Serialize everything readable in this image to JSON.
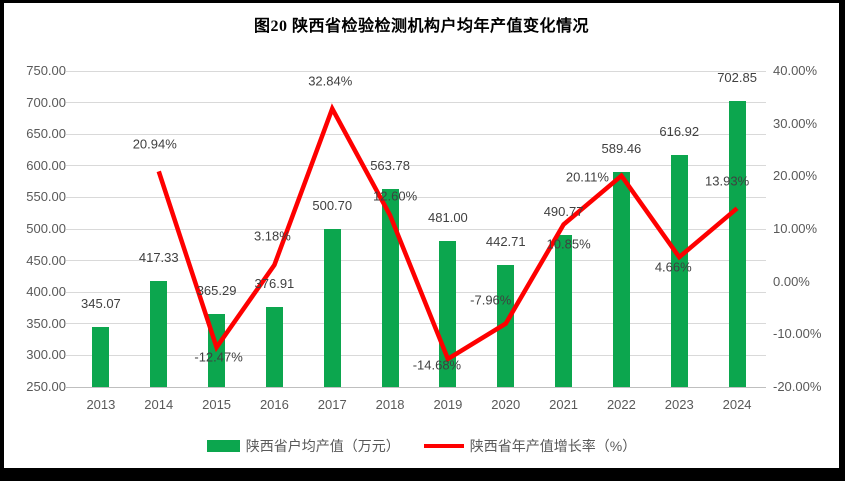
{
  "title": "图20  陕西省检验检测机构户均年产值变化情况",
  "colors": {
    "bar": "#0CA64E",
    "line": "#FE0000",
    "grid": "#D9D9D9",
    "axis_line": "#BFBFBF",
    "tick_text": "#595959",
    "data_label": "#404040",
    "frame": "#000000"
  },
  "chart_data": {
    "type": "bar",
    "subtype": "bar+line combo, dual y-axes",
    "title": "图20  陕西省检验检测机构户均年产值变化情况",
    "categories": [
      "2013",
      "2014",
      "2015",
      "2016",
      "2017",
      "2018",
      "2019",
      "2020",
      "2021",
      "2022",
      "2023",
      "2024"
    ],
    "series": [
      {
        "name": "陕西省户均产值（万元）",
        "type": "bar",
        "axis": "left",
        "values": [
          345.07,
          417.33,
          365.29,
          376.91,
          500.7,
          563.78,
          481.0,
          442.71,
          490.77,
          589.46,
          616.92,
          702.85
        ],
        "labels": [
          "345.07",
          "417.33",
          "365.29",
          "376.91",
          "500.70",
          "563.78",
          "481.00",
          "442.71",
          "490.77",
          "589.46",
          "616.92",
          "702.85"
        ]
      },
      {
        "name": "陕西省年产值增长率（%）",
        "type": "line",
        "axis": "right",
        "values": [
          null,
          20.94,
          -12.47,
          3.18,
          32.84,
          12.6,
          -14.68,
          -7.96,
          10.85,
          20.11,
          4.66,
          13.93
        ],
        "labels": [
          null,
          "20.94%",
          "-12.47%",
          "3.18%",
          "32.84%",
          "12.60%",
          "-14.68%",
          "-7.96%",
          "10.85%",
          "20.11%",
          "4.66%",
          "13.93%"
        ],
        "label_offsets": [
          null,
          [
            -4,
            -27
          ],
          [
            2,
            10
          ],
          [
            -2,
            -29
          ],
          [
            -2,
            -28
          ],
          [
            5,
            -19
          ],
          [
            -11,
            6
          ],
          [
            -15,
            -24
          ],
          [
            5,
            19
          ],
          [
            -34,
            1
          ],
          [
            -6,
            10
          ],
          [
            -10,
            -27
          ]
        ]
      }
    ],
    "y_left": {
      "min": 250,
      "max": 750,
      "step": 50,
      "ticks": [
        "750.00",
        "700.00",
        "650.00",
        "600.00",
        "550.00",
        "500.00",
        "450.00",
        "400.00",
        "350.00",
        "300.00",
        "250.00"
      ]
    },
    "y_right": {
      "min": -20,
      "max": 40,
      "step": 10,
      "ticks": [
        "40.00%",
        "30.00%",
        "20.00%",
        "10.00%",
        "0.00%",
        "-10.00%",
        "-20.00%"
      ]
    },
    "grid": true,
    "legend_position": "bottom"
  }
}
